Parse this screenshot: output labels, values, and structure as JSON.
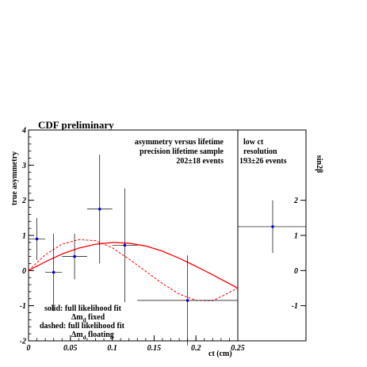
{
  "chart_data": [
    {
      "type": "scatter",
      "title": "CDF preliminary",
      "xlabel": "ct (cm)",
      "ylabel": "true asymmetry",
      "xlim": [
        0,
        0.25
      ],
      "ylim": [
        -2,
        4
      ],
      "x_ticks": [
        "0",
        "0.05",
        "0.1",
        "0.15",
        "0.2",
        "0.25"
      ],
      "y_ticks": [
        "-2",
        "-1",
        "0",
        "1",
        "2",
        "3",
        "4"
      ],
      "annotation_lines": [
        "asymmetry versus lifetime",
        "precision lifetime sample",
        "202±18 events"
      ],
      "points": [
        {
          "x": 0.01,
          "y": 0.9,
          "xerr": 0.01,
          "yerr": 0.6
        },
        {
          "x": 0.03,
          "y": -0.05,
          "xerr": 0.01,
          "yerr": 1.1
        },
        {
          "x": 0.055,
          "y": 0.4,
          "xerr": 0.015,
          "yerr": 0.65
        },
        {
          "x": 0.085,
          "y": 1.75,
          "xerr": 0.015,
          "yerr": 1.55
        },
        {
          "x": 0.115,
          "y": 0.72,
          "xerr": 0.015,
          "yerr": 1.62
        },
        {
          "x": 0.19,
          "y": -0.85,
          "xerr": 0.06,
          "yerr": 1.28
        }
      ],
      "fits": [
        {
          "style": "solid",
          "x": [
            0,
            0.02,
            0.04,
            0.06,
            0.08,
            0.1,
            0.12,
            0.14,
            0.16,
            0.18,
            0.2,
            0.22,
            0.25
          ],
          "y": [
            0.0,
            0.25,
            0.47,
            0.64,
            0.75,
            0.8,
            0.78,
            0.7,
            0.55,
            0.35,
            0.12,
            -0.12,
            -0.5
          ]
        },
        {
          "style": "dashed",
          "x": [
            0,
            0.02,
            0.04,
            0.06,
            0.08,
            0.1,
            0.12,
            0.14,
            0.16,
            0.18,
            0.2,
            0.22,
            0.25
          ],
          "y": [
            0.0,
            0.45,
            0.75,
            0.88,
            0.85,
            0.65,
            0.33,
            -0.02,
            -0.37,
            -0.67,
            -0.85,
            -0.86,
            -0.5
          ]
        }
      ],
      "legend": {
        "solid_label": "solid: full likelihood fit",
        "solid_sub": "Δm",
        "solid_sub_idx": "d",
        "solid_sub_rest": " fixed",
        "dashed_label": "dashed: full likelihood fit",
        "dashed_sub": "Δm",
        "dashed_sub_idx": "d",
        "dashed_sub_rest": " floating"
      },
      "colors": {
        "fit": "#ff0000",
        "point": "#0000cc",
        "errorbar": "#000000"
      }
    },
    {
      "type": "scatter",
      "ylabel": "sin2β",
      "ylim": [
        -2,
        4
      ],
      "y_ticks": [
        "-1",
        "0",
        "1",
        "2"
      ],
      "annotation_lines": [
        "low ct",
        "resolution",
        "193±26 events"
      ],
      "points": [
        {
          "y": 1.25,
          "yerr": 0.75
        }
      ]
    }
  ]
}
